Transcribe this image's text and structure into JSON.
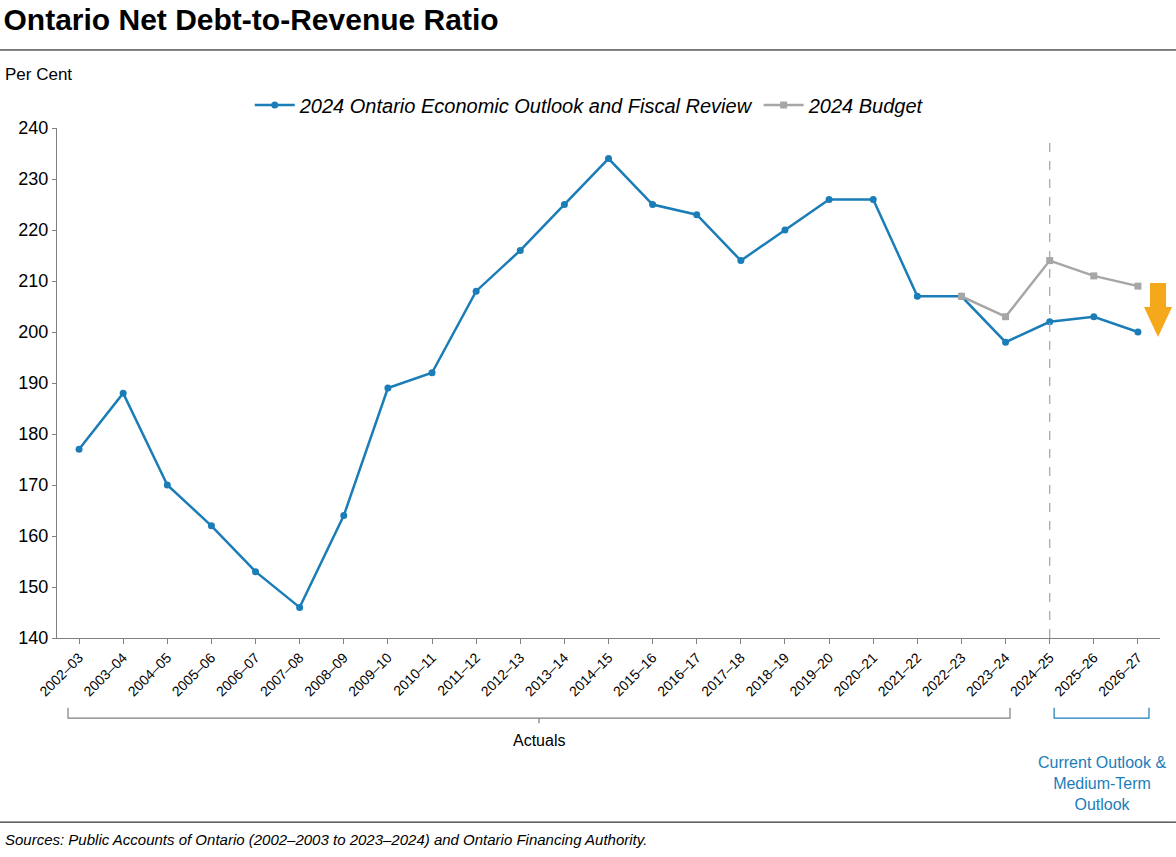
{
  "chart_data": {
    "type": "line",
    "title": "Ontario Net Debt-to-Revenue Ratio",
    "y_label": "Per Cent",
    "categories": [
      "2002–03",
      "2003–04",
      "2004–05",
      "2005–06",
      "2006–07",
      "2007–08",
      "2008–09",
      "2009–10",
      "2010–11",
      "2011–12",
      "2012–13",
      "2013–14",
      "2014–15",
      "2015–16",
      "2016–17",
      "2017–18",
      "2018–19",
      "2019–20",
      "2020–21",
      "2021–22",
      "2022–23",
      "2023–24",
      "2024–25",
      "2025–26",
      "2026–27"
    ],
    "series": [
      {
        "name": "2024 Ontario Economic Outlook and Fiscal Review",
        "color": "#1b7db8",
        "marker": "circle",
        "values": [
          177,
          188,
          170,
          162,
          153,
          146,
          164,
          189,
          192,
          208,
          216,
          225,
          234,
          225,
          223,
          214,
          220,
          226,
          226,
          207,
          207,
          198,
          202,
          203,
          200
        ]
      },
      {
        "name": "2024 Budget",
        "color": "#a6a6a6",
        "marker": "square",
        "values": [
          null,
          null,
          null,
          null,
          null,
          null,
          null,
          null,
          null,
          null,
          null,
          null,
          null,
          null,
          null,
          null,
          null,
          null,
          null,
          null,
          207,
          203,
          214,
          211,
          209
        ]
      }
    ],
    "ylim": [
      140,
      240
    ],
    "yticks": [
      140,
      150,
      160,
      170,
      180,
      190,
      200,
      210,
      220,
      230,
      240
    ],
    "grid": false,
    "legend": "top",
    "brackets": [
      {
        "text": [
          "Actuals"
        ],
        "from": "2002–03",
        "to": "2023–24",
        "color": "#7f7f7f"
      },
      {
        "text": [
          "Current Outlook &",
          "Medium-Term",
          "Outlook"
        ],
        "from": "2024–25",
        "to": "2026–27",
        "color": "#1b7db8"
      }
    ],
    "source": "Sources: Public Accounts of Ontario (2002–2003 to 2023–2024) and Ontario Financing Authority."
  }
}
